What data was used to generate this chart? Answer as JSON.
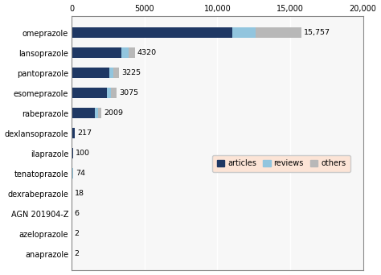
{
  "categories": [
    "omeprazole",
    "lansoprazole",
    "pantoprazole",
    "esomeprazole",
    "rabeprazole",
    "dexlansoprazole",
    "ilaprazole",
    "tenatoprazole",
    "dexrabeprazole",
    "AGN 201904-Z",
    "azeloprazole",
    "anaprazole"
  ],
  "totals": [
    15757,
    4320,
    3225,
    3075,
    2009,
    217,
    100,
    74,
    18,
    6,
    2,
    2
  ],
  "articles": [
    11000,
    3400,
    2550,
    2420,
    1600,
    185,
    82,
    60,
    14,
    5,
    1,
    1
  ],
  "reviews": [
    1600,
    500,
    280,
    260,
    180,
    20,
    10,
    7,
    2,
    1,
    1,
    1
  ],
  "others": [
    3157,
    420,
    395,
    395,
    229,
    12,
    8,
    7,
    2,
    0,
    0,
    0
  ],
  "color_articles": "#1f3864",
  "color_reviews": "#92c5de",
  "color_others": "#b8b8b8",
  "legend_bg": "#fce4d6",
  "xlim": [
    0,
    20000
  ],
  "xticks": [
    0,
    5000,
    10000,
    15000,
    20000
  ],
  "xtick_labels": [
    "0",
    "5000",
    "10,000",
    "15,000",
    "20,000"
  ],
  "background_color": "#ffffff",
  "plot_bg": "#f7f7f7",
  "border_color": "#888888",
  "grid_color": "#ffffff",
  "label_fontsize": 6.8,
  "tick_fontsize": 7.0
}
